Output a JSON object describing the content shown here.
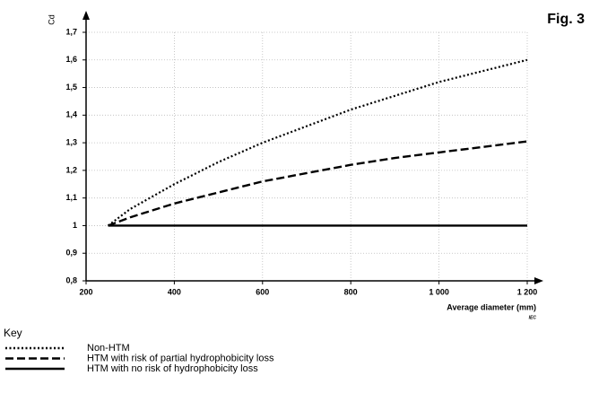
{
  "chart_data": {
    "type": "line",
    "title": "Fig. 3",
    "ylabel": "Cd",
    "xlabel": "Average diameter  (mm)",
    "source": "IEC",
    "legend_title": "Key",
    "x": [
      250,
      300,
      400,
      500,
      600,
      700,
      800,
      900,
      1000,
      1100,
      1200
    ],
    "series": [
      {
        "name": "Non-HTM",
        "color": "#000000",
        "style": "dotted",
        "values": [
          1.0,
          1.06,
          1.15,
          1.23,
          1.3,
          1.36,
          1.42,
          1.47,
          1.52,
          1.56,
          1.6
        ]
      },
      {
        "name": "HTM with risk of partial hydrophobicity loss",
        "color": "#000000",
        "style": "dashed",
        "values": [
          1.0,
          1.03,
          1.08,
          1.12,
          1.16,
          1.19,
          1.22,
          1.245,
          1.265,
          1.285,
          1.305
        ]
      },
      {
        "name": "HTM with no risk of hydrophobicity loss",
        "color": "#000000",
        "style": "solid",
        "values": [
          1.0,
          1.0,
          1.0,
          1.0,
          1.0,
          1.0,
          1.0,
          1.0,
          1.0,
          1.0,
          1.0
        ]
      }
    ],
    "xlim": [
      200,
      1200
    ],
    "ylim": [
      0.8,
      1.7
    ],
    "xticks": [
      200,
      400,
      600,
      800,
      {
        "value": 1000,
        "label": "1 000"
      },
      {
        "value": 1200,
        "label": "1 200"
      }
    ],
    "yticks": [
      {
        "value": 0.8,
        "label": "0,8"
      },
      {
        "value": 0.9,
        "label": "0,9"
      },
      1,
      {
        "value": 1.1,
        "label": "1,1"
      },
      {
        "value": 1.2,
        "label": "1,2"
      },
      {
        "value": 1.3,
        "label": "1,3"
      },
      {
        "value": 1.4,
        "label": "1,4"
      },
      {
        "value": 1.5,
        "label": "1,5"
      },
      {
        "value": 1.6,
        "label": "1,6"
      },
      {
        "value": 1.7,
        "label": "1,7"
      }
    ],
    "grid": true,
    "legend": "bottom-left"
  }
}
